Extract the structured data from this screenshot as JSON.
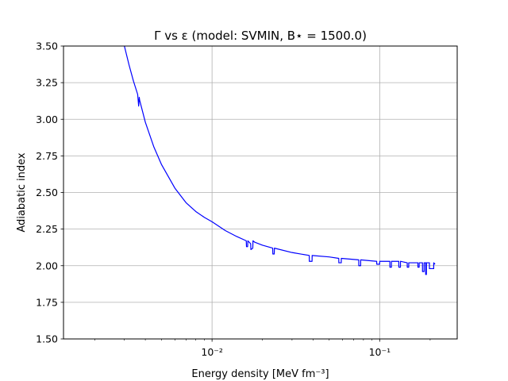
{
  "chart_data": {
    "type": "line",
    "title": "Γ vs ε (model: SVMIN, B⋆ = 1500.0)",
    "xlabel": "Energy density [MeV fm⁻³]",
    "ylabel": "Adiabatic index",
    "xscale": "log",
    "xlim": [
      0.0013,
      0.29
    ],
    "ylim": [
      1.5,
      3.5
    ],
    "grid": true,
    "line_color": "#0000ff",
    "xticks": [
      {
        "value": 0.01,
        "label": "10⁻²"
      },
      {
        "value": 0.1,
        "label": "10⁻¹"
      }
    ],
    "yticks": [
      {
        "value": 1.5,
        "label": "1.50"
      },
      {
        "value": 1.75,
        "label": "1.75"
      },
      {
        "value": 2.0,
        "label": "2.00"
      },
      {
        "value": 2.25,
        "label": "2.25"
      },
      {
        "value": 2.5,
        "label": "2.50"
      },
      {
        "value": 2.75,
        "label": "2.75"
      },
      {
        "value": 3.0,
        "label": "3.00"
      },
      {
        "value": 3.25,
        "label": "3.25"
      },
      {
        "value": 3.5,
        "label": "3.50"
      }
    ],
    "series": [
      {
        "x": [
          0.003,
          0.0032,
          0.0034,
          0.0036,
          0.00365,
          0.00368,
          0.0037,
          0.004,
          0.0045,
          0.005,
          0.006,
          0.007,
          0.008,
          0.009,
          0.01,
          0.012,
          0.014,
          0.016,
          0.01605,
          0.0163,
          0.01635,
          0.017,
          0.01705,
          0.0175,
          0.01755,
          0.018,
          0.02,
          0.023,
          0.02305,
          0.0235,
          0.02355,
          0.03,
          0.038,
          0.03805,
          0.0395,
          0.03955,
          0.05,
          0.057,
          0.05705,
          0.059,
          0.05905,
          0.075,
          0.07505,
          0.077,
          0.07705,
          0.096,
          0.09605,
          0.1,
          0.10005,
          0.115,
          0.11505,
          0.1175,
          0.11755,
          0.13,
          0.13005,
          0.133,
          0.13305,
          0.146,
          0.14605,
          0.149,
          0.14905,
          0.169,
          0.16905,
          0.172,
          0.17205,
          0.18,
          0.18005,
          0.184,
          0.18405,
          0.188,
          0.18805,
          0.19,
          0.19005,
          0.198,
          0.19805,
          0.21,
          0.21005,
          0.214
        ],
        "y": [
          3.5,
          3.37,
          3.26,
          3.17,
          3.09,
          3.15,
          3.13,
          2.98,
          2.81,
          2.69,
          2.53,
          2.43,
          2.37,
          2.33,
          2.3,
          2.24,
          2.2,
          2.17,
          2.13,
          2.13,
          2.17,
          2.15,
          2.11,
          2.12,
          2.17,
          2.16,
          2.14,
          2.12,
          2.08,
          2.08,
          2.12,
          2.09,
          2.07,
          2.03,
          2.03,
          2.07,
          2.06,
          2.05,
          2.02,
          2.02,
          2.05,
          2.04,
          2.0,
          2.0,
          2.04,
          2.03,
          2.01,
          2.01,
          2.03,
          2.03,
          1.99,
          1.99,
          2.03,
          2.03,
          1.99,
          1.99,
          2.03,
          2.02,
          1.99,
          1.99,
          2.02,
          2.02,
          1.99,
          1.99,
          2.02,
          2.02,
          1.96,
          1.96,
          2.02,
          2.02,
          1.94,
          1.94,
          2.02,
          2.02,
          1.98,
          1.98,
          2.02,
          2.01
        ]
      }
    ]
  }
}
